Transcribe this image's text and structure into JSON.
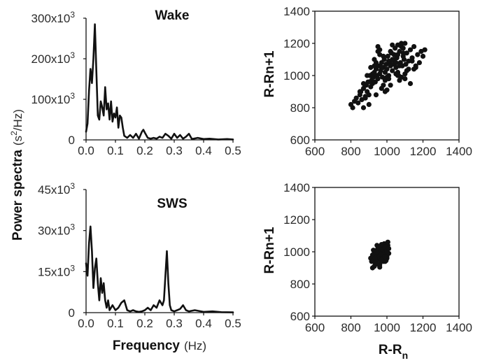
{
  "figure": {
    "ylabel_main": "Power spectra",
    "ylabel_unit_base": "(s",
    "ylabel_unit_sup": "2",
    "ylabel_unit_tail": "/Hz)",
    "xlabel_main": "Frequency",
    "xlabel_unit": "(Hz)",
    "rr_x_base": "R-R",
    "rr_x_sub": "n",
    "rr_y_label": "R-Rn+1"
  },
  "chart_data": [
    {
      "id": "wake-spectrum",
      "type": "line",
      "title": "Wake",
      "xlim": [
        0,
        0.5
      ],
      "ylim": [
        0,
        300000
      ],
      "x_ticks": [
        "0.0",
        "0.1",
        "0.2",
        "0.3",
        "0.4",
        "0.5"
      ],
      "y_ticks": [
        {
          "base": "0",
          "sup": ""
        },
        {
          "base": "100x10",
          "sup": "3"
        },
        {
          "base": "200x10",
          "sup": "3"
        },
        {
          "base": "300x10",
          "sup": "3"
        }
      ],
      "series": [
        {
          "color": "#111111",
          "x": [
            0,
            0.005,
            0.01,
            0.015,
            0.02,
            0.025,
            0.03,
            0.035,
            0.04,
            0.045,
            0.05,
            0.055,
            0.06,
            0.065,
            0.07,
            0.075,
            0.08,
            0.085,
            0.09,
            0.095,
            0.1,
            0.105,
            0.11,
            0.115,
            0.12,
            0.125,
            0.13,
            0.14,
            0.15,
            0.16,
            0.17,
            0.18,
            0.19,
            0.195,
            0.2,
            0.21,
            0.22,
            0.23,
            0.24,
            0.25,
            0.26,
            0.27,
            0.28,
            0.29,
            0.3,
            0.31,
            0.32,
            0.33,
            0.34,
            0.35,
            0.36,
            0.38,
            0.4,
            0.42,
            0.45,
            0.48,
            0.5
          ],
          "y": [
            20000,
            40000,
            120000,
            175000,
            140000,
            200000,
            285000,
            170000,
            60000,
            50000,
            95000,
            80000,
            60000,
            130000,
            75000,
            90000,
            50000,
            95000,
            45000,
            65000,
            55000,
            80000,
            30000,
            60000,
            55000,
            30000,
            10000,
            5000,
            12000,
            5000,
            15000,
            3000,
            20000,
            25000,
            18000,
            5000,
            3000,
            5000,
            3000,
            8000,
            5000,
            15000,
            10000,
            3000,
            15000,
            5000,
            12000,
            3000,
            8000,
            15000,
            2000,
            5000,
            2000,
            3000,
            1000,
            2000,
            1000
          ]
        }
      ]
    },
    {
      "id": "sws-spectrum",
      "type": "line",
      "title": "SWS",
      "xlim": [
        0,
        0.5
      ],
      "ylim": [
        0,
        50000
      ],
      "x_ticks": [
        "0.0",
        "0.1",
        "0.2",
        "0.3",
        "0.4",
        "0.5"
      ],
      "y_ticks": [
        {
          "base": "0",
          "sup": ""
        },
        {
          "base": "15x10",
          "sup": "3"
        },
        {
          "base": "30x10",
          "sup": "3"
        },
        {
          "base": "45x10",
          "sup": "3"
        }
      ],
      "series": [
        {
          "color": "#111111",
          "x": [
            0,
            0.005,
            0.01,
            0.015,
            0.02,
            0.025,
            0.03,
            0.035,
            0.04,
            0.045,
            0.05,
            0.055,
            0.06,
            0.065,
            0.07,
            0.075,
            0.08,
            0.09,
            0.1,
            0.11,
            0.12,
            0.13,
            0.14,
            0.15,
            0.16,
            0.17,
            0.18,
            0.19,
            0.2,
            0.21,
            0.22,
            0.23,
            0.24,
            0.25,
            0.26,
            0.265,
            0.27,
            0.275,
            0.28,
            0.285,
            0.29,
            0.3,
            0.31,
            0.32,
            0.33,
            0.34,
            0.35,
            0.37,
            0.4,
            0.43,
            0.46,
            0.5
          ],
          "y": [
            20000,
            15000,
            28000,
            35000,
            25000,
            10000,
            18000,
            22000,
            12000,
            5000,
            14000,
            8000,
            12000,
            5000,
            2000,
            5000,
            1000,
            3000,
            1000,
            2000,
            4000,
            5000,
            1000,
            500,
            1000,
            500,
            300,
            500,
            1000,
            2000,
            1000,
            3000,
            2000,
            5000,
            3000,
            5000,
            15000,
            25000,
            12000,
            3000,
            1000,
            500,
            1000,
            1500,
            3000,
            1000,
            500,
            1000,
            300,
            500,
            200,
            100
          ]
        }
      ]
    },
    {
      "id": "wake-poincare",
      "type": "scatter",
      "xlim": [
        600,
        1400
      ],
      "ylim": [
        600,
        1400
      ],
      "x_ticks": [
        "600",
        "800",
        "1000",
        "1200",
        "1400"
      ],
      "y_ticks": [
        "600",
        "800",
        "1000",
        "1200",
        "1400"
      ],
      "series": [
        {
          "color": "#111111",
          "x": [
            800,
            810,
            820,
            830,
            840,
            850,
            855,
            860,
            870,
            880,
            885,
            890,
            895,
            900,
            905,
            910,
            915,
            920,
            925,
            930,
            935,
            940,
            945,
            950,
            955,
            960,
            965,
            970,
            975,
            980,
            985,
            990,
            995,
            1000,
            1005,
            1010,
            1015,
            1020,
            1025,
            1030,
            1035,
            1040,
            1045,
            1050,
            1055,
            1060,
            1065,
            1070,
            1075,
            1080,
            1085,
            1090,
            1095,
            1100,
            1105,
            1110,
            1120,
            1130,
            1140,
            1150,
            1160,
            1170,
            1180,
            1190,
            1200,
            1210,
            850,
            870,
            890,
            910,
            930,
            950,
            970,
            990,
            1010,
            1030,
            1050,
            1070,
            1090,
            1110,
            880,
            900,
            920,
            940,
            960,
            980,
            1000,
            1020,
            1040,
            1060,
            1080,
            1100,
            1120,
            1140,
            900,
            940,
            980,
            1020,
            1060,
            1100,
            930,
            960,
            990,
            1030,
            1070,
            1150,
            870,
            920,
            970,
            1010,
            1050,
            1090,
            1130,
            1000,
            1040,
            1080,
            1160,
            950,
            1060
          ],
          "y": [
            820,
            800,
            840,
            860,
            830,
            880,
            900,
            850,
            920,
            870,
            940,
            900,
            960,
            880,
            1000,
            930,
            970,
            950,
            990,
            1020,
            960,
            1040,
            1000,
            980,
            1060,
            1010,
            1030,
            1080,
            990,
            1050,
            1100,
            1020,
            1070,
            1040,
            1120,
            1000,
            1080,
            1060,
            1140,
            1030,
            1100,
            1090,
            1170,
            1050,
            1110,
            1130,
            1000,
            1150,
            1080,
            1180,
            1060,
            1120,
            1100,
            1200,
            1070,
            1140,
            1090,
            1160,
            1110,
            1180,
            1050,
            1130,
            1080,
            1150,
            1120,
            1160,
            900,
            950,
            1000,
            1050,
            1100,
            1150,
            920,
            970,
            1090,
            1190,
            1010,
            1060,
            1170,
            1030,
            860,
            960,
            1010,
            1080,
            1130,
            940,
            990,
            1150,
            1070,
            1020,
            1200,
            980,
            1040,
            1090,
            820,
            880,
            1120,
            940,
            1190,
            1010,
            1060,
            1160,
            900,
            1100,
            970,
            1040,
            800,
            990,
            1050,
            980,
            1080,
            1140,
            950,
            910,
            1130,
            990,
            1060,
            1180,
            1000
          ]
        }
      ]
    },
    {
      "id": "sws-poincare",
      "type": "scatter",
      "xlim": [
        600,
        1400
      ],
      "ylim": [
        600,
        1400
      ],
      "x_ticks": [
        "600",
        "800",
        "1000",
        "1200",
        "1400"
      ],
      "y_ticks": [
        "600",
        "800",
        "1000",
        "1200",
        "1400"
      ],
      "series": [
        {
          "color": "#111111",
          "x": [
            910,
            915,
            920,
            925,
            930,
            935,
            940,
            945,
            950,
            955,
            960,
            965,
            970,
            975,
            980,
            985,
            990,
            995,
            1000,
            1005,
            1010,
            920,
            930,
            940,
            950,
            960,
            970,
            980,
            990,
            1000,
            940,
            950,
            960,
            970,
            980,
            990,
            930,
            945,
            955,
            965,
            975,
            985,
            995,
            1005,
            925,
            935,
            950,
            960,
            970,
            985,
            1000,
            1010,
            945,
            965,
            980,
            995,
            940,
            955,
            970,
            990
          ],
          "y": [
            960,
            940,
            980,
            950,
            1000,
            930,
            970,
            1010,
            950,
            990,
            920,
            1030,
            960,
            1000,
            940,
            1050,
            980,
            1020,
            970,
            1040,
            990,
            900,
            910,
            990,
            1020,
            950,
            985,
            1010,
            940,
            960,
            950,
            975,
            995,
            940,
            975,
            1030,
            985,
            925,
            965,
            1015,
            955,
            990,
            1005,
            1060,
            1010,
            960,
            1000,
            905,
            1045,
            970,
            1000,
            1020,
            1040,
            985,
            960,
            945,
            1000,
            1025,
            950,
            970
          ]
        }
      ]
    }
  ]
}
